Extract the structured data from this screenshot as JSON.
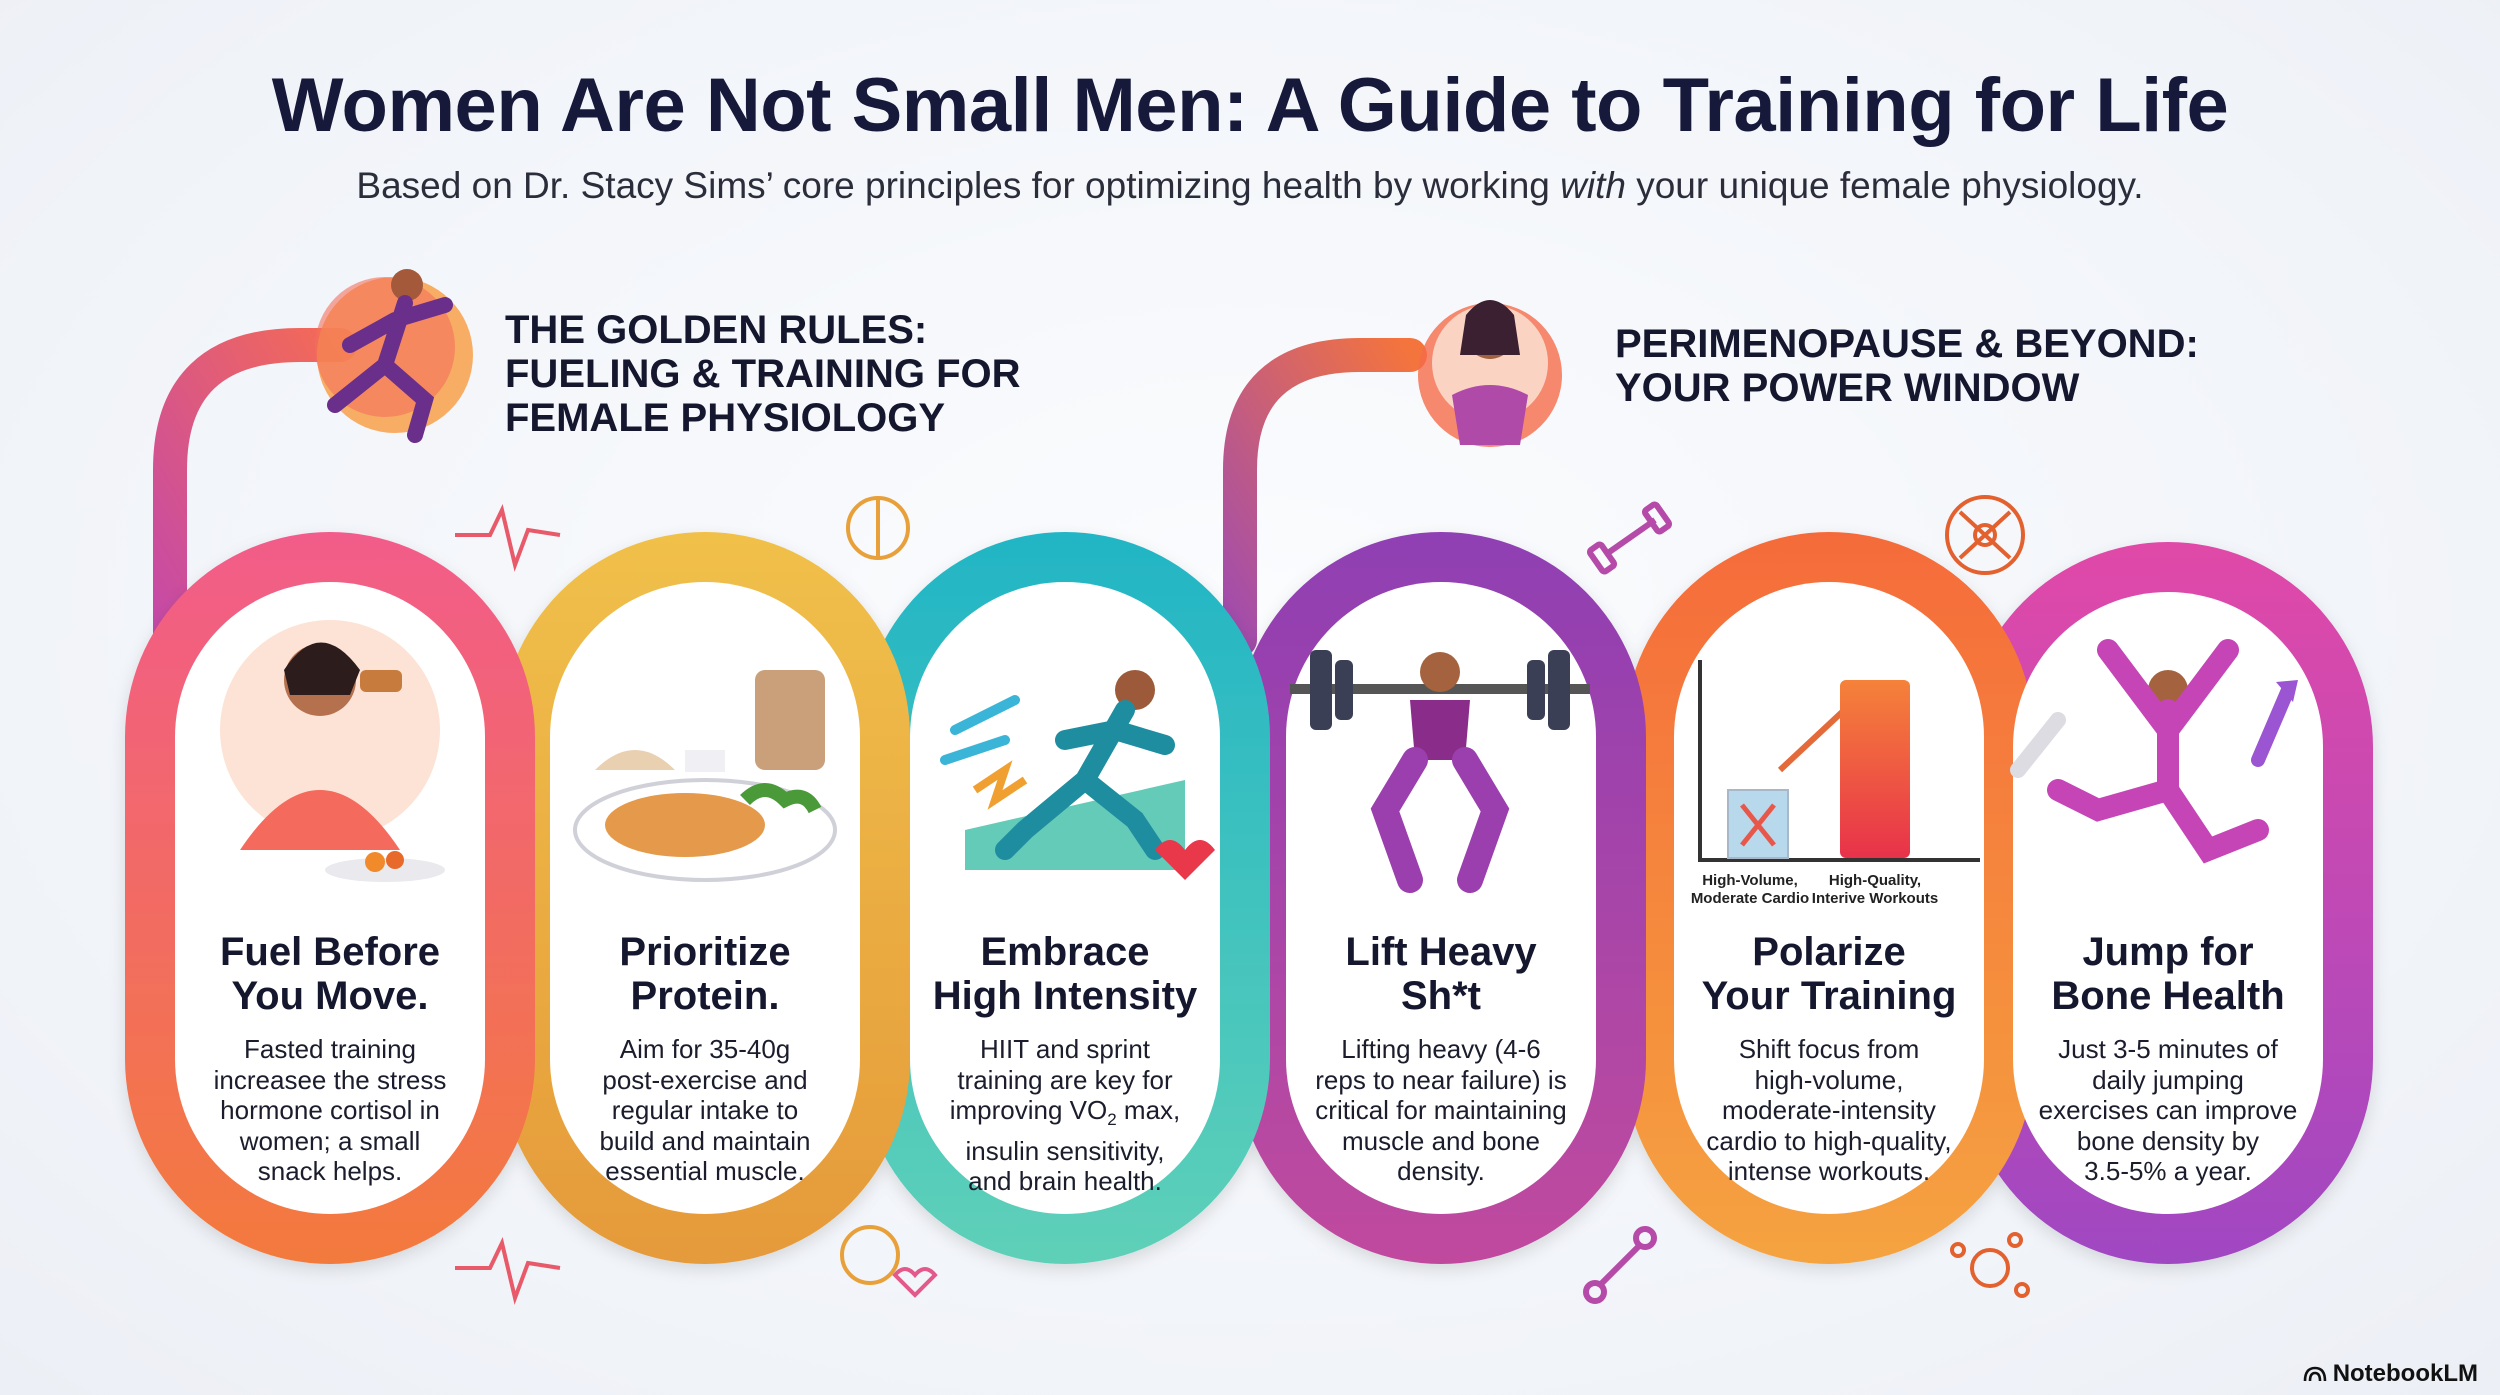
{
  "header": {
    "title": "Women Are Not Small Men: A Guide to Training for Life",
    "subtitle_before": "Based on Dr. Stacy Sims’ core principles for optimizing health by working ",
    "subtitle_emphasis": "with",
    "subtitle_after": " your unique female physiology."
  },
  "sections": [
    {
      "lines": [
        "THE GOLDEN RULES:",
        "FUELING & TRAINING FOR",
        "FEMALE PHYSIOLOGY"
      ]
    },
    {
      "lines": [
        "PERIMENOPAUSE & BEYOND:",
        "YOUR POWER WINDOW"
      ]
    }
  ],
  "cards": [
    {
      "title": [
        "Fuel Before",
        "You Move."
      ],
      "body": [
        "Fasted training",
        "increasee the stress",
        "hormone cortisol in",
        "women; a small",
        "snack helps."
      ],
      "color": "#ec4a6a"
    },
    {
      "title": [
        "Prioritize",
        "Protein."
      ],
      "body": [
        "Aim for 35-40g",
        "post-exercise and",
        "regular intake to",
        "build and maintain",
        "essential muscle."
      ],
      "color": "#e9b73f"
    },
    {
      "title": [
        "Embrace",
        "High Intensity"
      ],
      "body_l1": "HIIT and sprint",
      "body_l2": "training are key for",
      "body_l3_pre": "improving VO",
      "body_l3_sub": "2",
      "body_l3_post": " max,",
      "body_l4": "insulin sensitivity,",
      "body_l5": "and brain health.",
      "color": "#2fb9bf"
    },
    {
      "title": [
        "Lift Heavy",
        "Sh*t"
      ],
      "body": [
        "Lifting heavy (4-6",
        "reps to near failure) is",
        "critical for maintaining",
        "muscle and bone",
        "density."
      ],
      "color": "#9b3fb0"
    },
    {
      "title": [
        "Polarize",
        "Your Training"
      ],
      "body": [
        "Shift focus from",
        "high-volume,",
        "moderate-intensity",
        "cardio to high-quality,",
        "intense workouts."
      ],
      "color": "#f5822e"
    },
    {
      "title": [
        "Jump for",
        "Bone Health"
      ],
      "body": [
        "Just 3-5 minutes of",
        "daily jumping",
        "exercises can improve",
        "bone density by",
        "3.5-5% a year."
      ],
      "color": "#c847b8"
    }
  ],
  "mini_chart": {
    "left_label": [
      "High-Volume,",
      "Moderate Cardio"
    ],
    "right_label": [
      "High-Quality,",
      "Interive Workouts"
    ]
  },
  "brand": "NotebookLM"
}
